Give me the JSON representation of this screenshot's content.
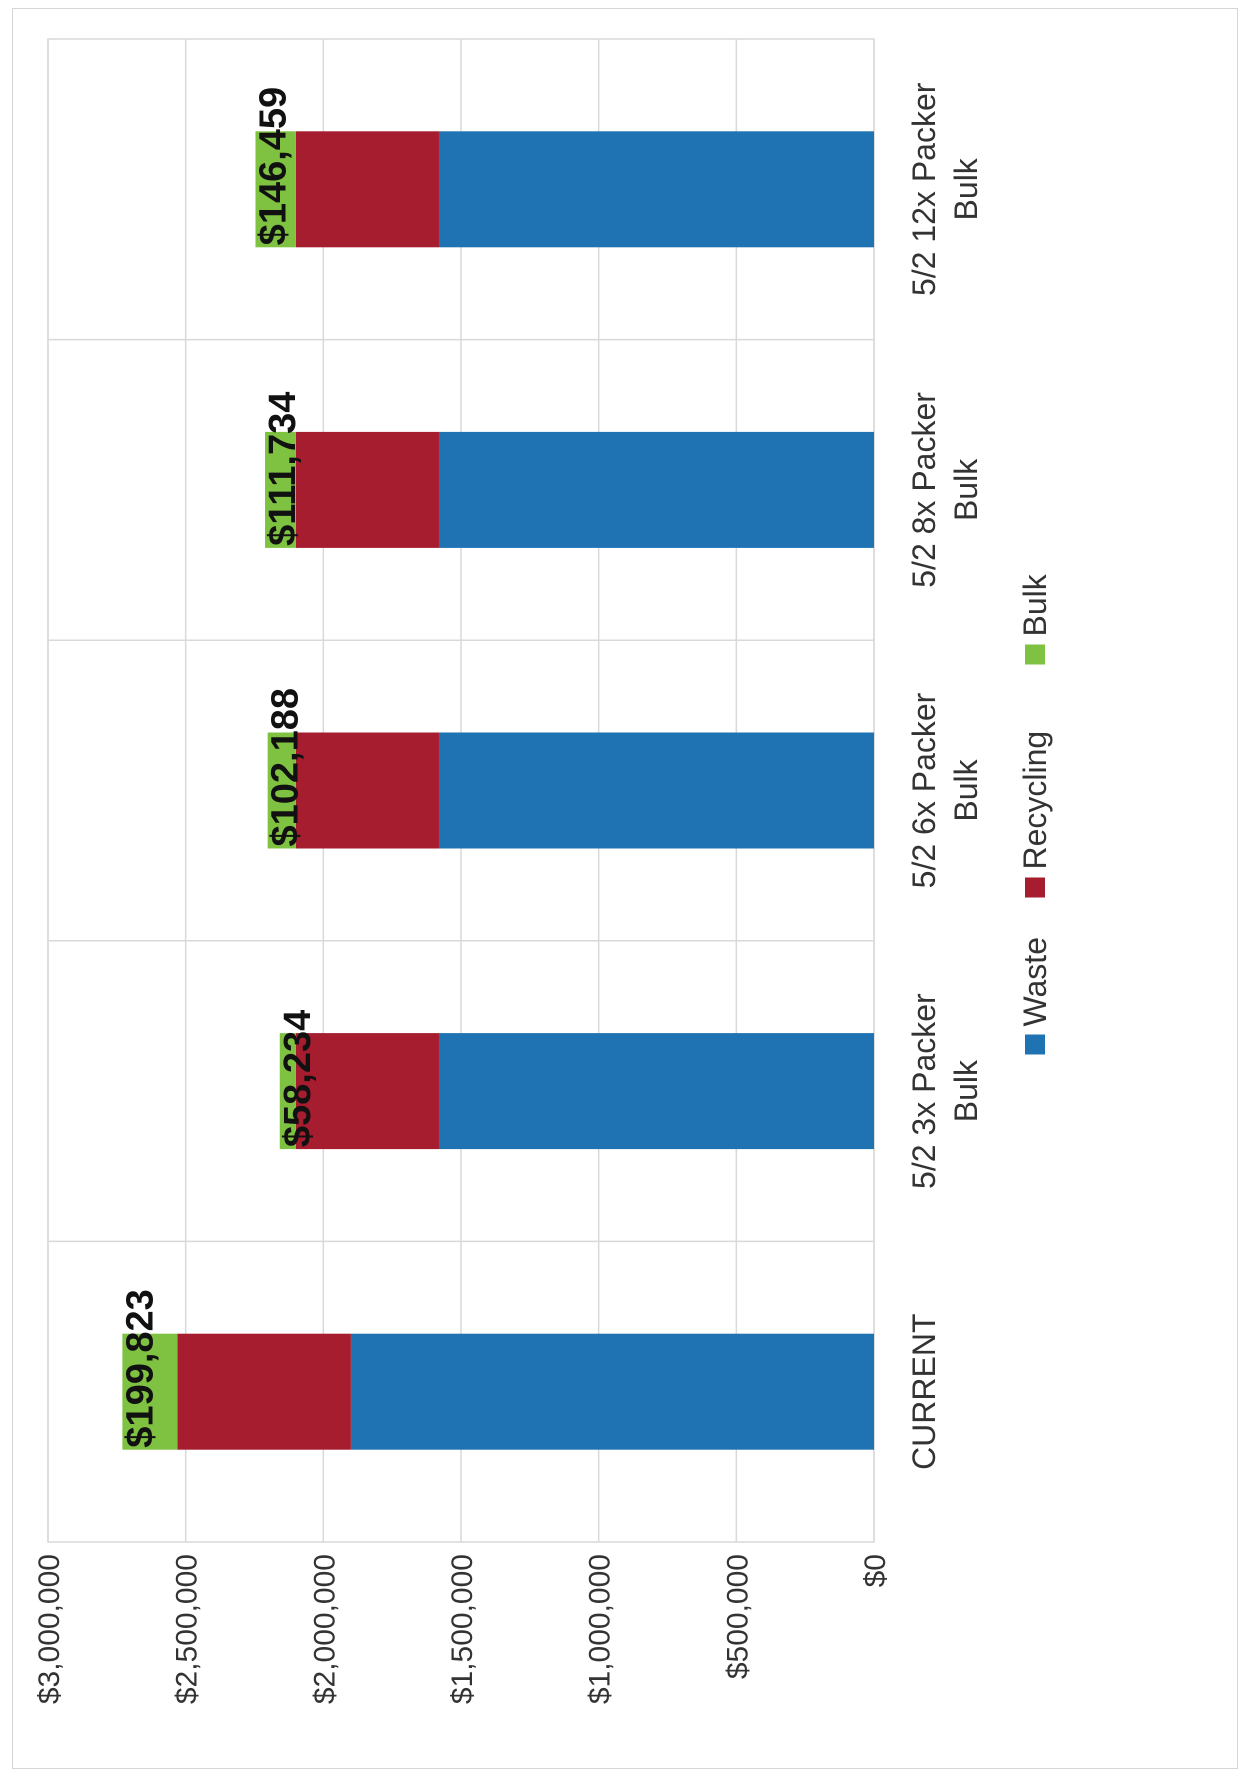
{
  "chart_data": {
    "type": "bar",
    "stacked": true,
    "orientation": "rotated-90-clockwise",
    "categories": [
      [
        "CURRENT"
      ],
      [
        "5/2 3x Packer",
        "Bulk"
      ],
      [
        "5/2 6x Packer",
        "Bulk"
      ],
      [
        "5/2 8x Packer",
        "Bulk"
      ],
      [
        "5/2 12x Packer",
        "Bulk"
      ]
    ],
    "series": [
      {
        "name": "Waste",
        "color": "#1f73b3",
        "values": [
          1900000,
          1580000,
          1580000,
          1580000,
          1580000
        ]
      },
      {
        "name": "Recycling",
        "color": "#a51d2e",
        "values": [
          630000,
          520000,
          520000,
          520000,
          520000
        ]
      },
      {
        "name": "Bulk",
        "color": "#7fc241",
        "values": [
          199823,
          58234,
          102188,
          111734,
          146459
        ]
      }
    ],
    "data_labels": [
      "$199,823",
      "$58,234",
      "$102,188",
      "$111,734",
      "$146,459"
    ],
    "y_ticks": [
      "$0",
      "$500,000",
      "$1,000,000",
      "$1,500,000",
      "$2,000,000",
      "$2,500,000",
      "$3,000,000"
    ],
    "ylim": [
      0,
      3000000
    ],
    "grid": true,
    "legend": {
      "position": "bottom",
      "entries": [
        "Waste",
        "Recycling",
        "Bulk"
      ]
    },
    "title": "",
    "xlabel": "",
    "ylabel": ""
  }
}
